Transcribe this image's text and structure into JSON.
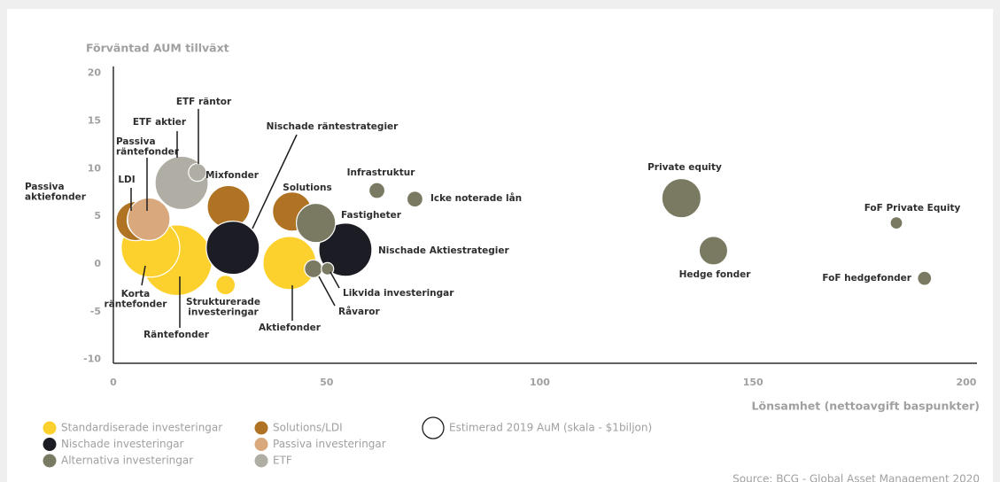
{
  "chart_data": {
    "type": "bubble",
    "y_label": "Förväntad AUM tillväxt",
    "x_label": "Lönsamhet (nettoavgift baspunkter)",
    "source": "Source: BCG - Global Asset Management 2020",
    "xlim": [
      0,
      202.5
    ],
    "xticks": [
      0,
      50,
      100,
      150,
      200
    ],
    "ylim": [
      -10.4,
      20.7
    ],
    "yticks": [
      -10,
      -5,
      0,
      5,
      10,
      15,
      20
    ],
    "size_legend": {
      "label": "Estimerad 2019 AuM (skala - $1biljon)",
      "size": 1
    },
    "series": [
      {
        "name": "Standardiserade investeringar",
        "color": "#fdd12d",
        "labels": [
          [
            "Räntefonder"
          ],
          [
            "Korta",
            "räntefonder"
          ],
          [
            "Strukturerade",
            "investeringar"
          ],
          [
            "Aktiefonder"
          ]
        ],
        "x": [
          14.9,
          8.7,
          26.3,
          41.3
        ],
        "values": [
          0.4,
          1.7,
          -2.2,
          0.1
        ],
        "sizes": [
          11,
          7.6,
          0.84,
          6.25
        ]
      },
      {
        "name": "Nischade investeringar",
        "color": "#1c1c24",
        "labels": [
          [
            "Nischade räntestrategier"
          ],
          [
            "Nischade Aktiestrategier"
          ]
        ],
        "x": [
          28,
          54.4
        ],
        "values": [
          1.7,
          1.5
        ],
        "sizes": [
          6.25,
          6.25
        ]
      },
      {
        "name": "Alternativa investeringar",
        "color": "#7a7a63",
        "labels": [
          [
            "Infrastruktur"
          ],
          [
            "Icke noterade lån"
          ],
          [
            "Fastigheter"
          ],
          [
            "Råvaror"
          ],
          [
            "Likvida investeringar"
          ],
          [
            "Private equity"
          ],
          [
            "Hedge fonder"
          ],
          [
            "FoF Private Equity"
          ],
          [
            "FoF hedgefonder"
          ]
        ],
        "x": [
          61.8,
          70.7,
          47.5,
          46.9,
          50.2,
          133.2,
          140.7,
          183.6,
          190.2
        ],
        "values": [
          7.7,
          6.8,
          4.3,
          -0.5,
          -0.5,
          6.9,
          1.4,
          4.3,
          -1.5
        ],
        "sizes": [
          0.56,
          0.56,
          3.4,
          0.7,
          0.34,
          3.4,
          1.8,
          0.34,
          0.44
        ]
      },
      {
        "name": "Solutions/LDI",
        "color": "#b07324",
        "labels": [
          [
            "LDI"
          ],
          [
            "Mixfonder"
          ],
          [
            "Solutions"
          ]
        ],
        "x": [
          5.2,
          27,
          41.9
        ],
        "values": [
          4.5,
          6,
          5.5
        ],
        "sizes": [
          3.4,
          4,
          3.4
        ]
      },
      {
        "name": "Passiva investeringar",
        "color": "#d9a97d",
        "labels": [
          [
            "Passiva",
            "aktiefonder"
          ],
          [
            "Passiva",
            "räntefonder"
          ]
        ],
        "x": [
          7.4,
          8.3
        ],
        "values": [
          4.6,
          4.7
        ],
        "sizes": [
          2.8,
          4
        ]
      },
      {
        "name": "ETF",
        "color": "#b0aea4",
        "labels": [
          [
            "ETF aktier"
          ],
          [
            "ETF räntor"
          ]
        ],
        "x": [
          16,
          19.7
        ],
        "values": [
          8.5,
          9.6
        ],
        "sizes": [
          6.25,
          0.7
        ]
      }
    ]
  }
}
